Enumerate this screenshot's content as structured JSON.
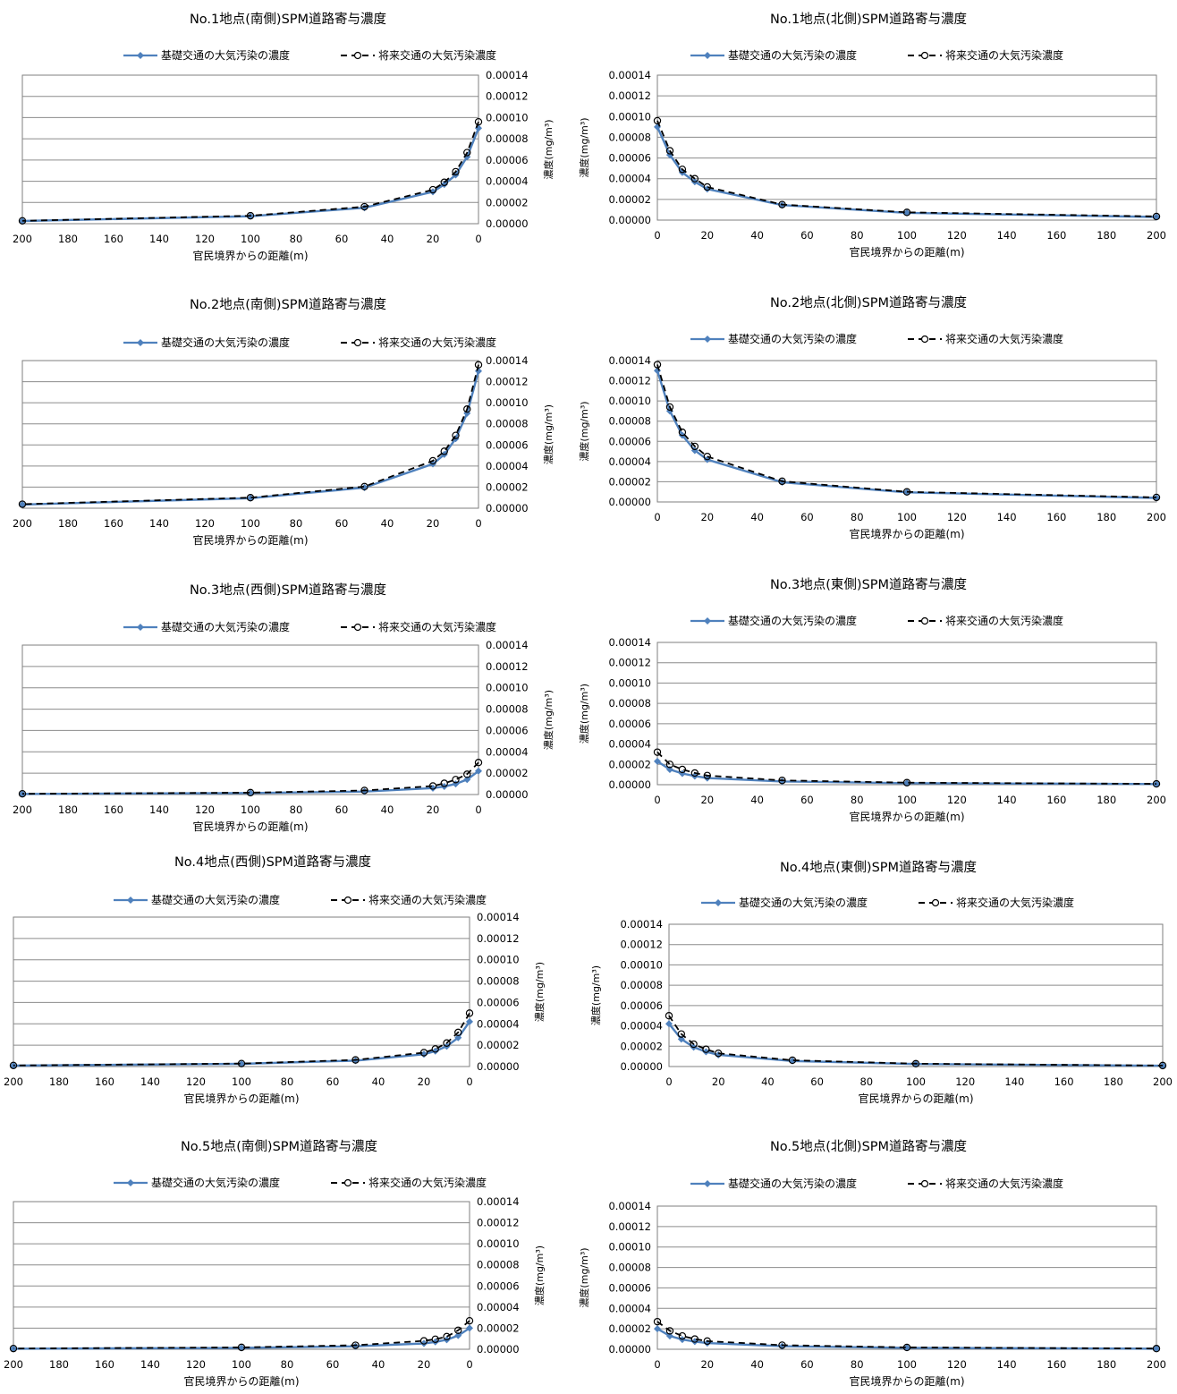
{
  "legend": {
    "base": "基礎交通の大気汚染の濃度",
    "future": "将来交通の大気汚染濃度"
  },
  "colors": {
    "base": "#4f81bd",
    "future": "#000000"
  },
  "xlabel": "官民境界からの距離(m)",
  "ylabel": "濃度(mg/m³)",
  "chart_data": [
    {
      "type": "line",
      "title": "No.1地点(南側)SPM道路寄与濃度",
      "orientation": "south",
      "xlim": [
        0,
        200
      ],
      "xticks": [
        200,
        180,
        160,
        140,
        120,
        100,
        80,
        60,
        40,
        20,
        0
      ],
      "x_reversed": true,
      "ylim": [
        0,
        0.00014
      ],
      "yticks": [
        "0.00000",
        "0.00002",
        "0.00004",
        "0.00006",
        "0.00008",
        "0.00010",
        "0.00012",
        "0.00014"
      ],
      "x": [
        0,
        5,
        10,
        15,
        20,
        50,
        100,
        200
      ],
      "series": [
        {
          "name": "基礎交通の大気汚染の濃度",
          "values": [
            9e-05,
            6.3e-05,
            4.6e-05,
            3.7e-05,
            3e-05,
            1.5e-05,
            7e-06,
            2.5e-06
          ]
        },
        {
          "name": "将来交通の大気汚染濃度",
          "values": [
            9.6e-05,
            6.7e-05,
            4.9e-05,
            3.9e-05,
            3.2e-05,
            1.6e-05,
            7.5e-06,
            2.7e-06
          ]
        }
      ]
    },
    {
      "type": "line",
      "title": "No.1地点(北側)SPM道路寄与濃度",
      "orientation": "north",
      "xlim": [
        0,
        200
      ],
      "xticks": [
        0,
        20,
        40,
        60,
        80,
        100,
        120,
        140,
        160,
        180,
        200
      ],
      "x_reversed": false,
      "ylim": [
        0,
        0.00014
      ],
      "yticks": [
        "0.00000",
        "0.00002",
        "0.00004",
        "0.00006",
        "0.00008",
        "0.00010",
        "0.00012",
        "0.00014"
      ],
      "x": [
        0,
        5,
        10,
        15,
        20,
        50,
        100,
        200
      ],
      "series": [
        {
          "name": "基礎交通の大気汚染の濃度",
          "values": [
            9e-05,
            6.3e-05,
            4.6e-05,
            3.7e-05,
            3e-05,
            1.45e-05,
            7e-06,
            3e-06
          ]
        },
        {
          "name": "将来交通の大気汚染濃度",
          "values": [
            9.6e-05,
            6.7e-05,
            4.9e-05,
            4e-05,
            3.2e-05,
            1.5e-05,
            7.5e-06,
            3.5e-06
          ]
        }
      ]
    },
    {
      "type": "line",
      "title": "No.2地点(南側)SPM道路寄与濃度",
      "orientation": "south",
      "xlim": [
        0,
        200
      ],
      "xticks": [
        200,
        180,
        160,
        140,
        120,
        100,
        80,
        60,
        40,
        20,
        0
      ],
      "x_reversed": true,
      "ylim": [
        0,
        0.00014
      ],
      "yticks": [
        "0.00000",
        "0.00002",
        "0.00004",
        "0.00006",
        "0.00008",
        "0.00010",
        "0.00012",
        "0.00014"
      ],
      "x": [
        0,
        5,
        10,
        15,
        20,
        50,
        100,
        200
      ],
      "series": [
        {
          "name": "基礎交通の大気汚染の濃度",
          "values": [
            0.00013,
            9e-05,
            6.6e-05,
            5.1e-05,
            4.2e-05,
            1.95e-05,
            9.5e-06,
            3.5e-06
          ]
        },
        {
          "name": "将来交通の大気汚染濃度",
          "values": [
            0.000136,
            9.4e-05,
            6.9e-05,
            5.4e-05,
            4.5e-05,
            2.05e-05,
            1e-05,
            3.8e-06
          ]
        }
      ]
    },
    {
      "type": "line",
      "title": "No.2地点(北側)SPM道路寄与濃度",
      "orientation": "north",
      "xlim": [
        0,
        200
      ],
      "xticks": [
        0,
        20,
        40,
        60,
        80,
        100,
        120,
        140,
        160,
        180,
        200
      ],
      "x_reversed": false,
      "ylim": [
        0,
        0.00014
      ],
      "yticks": [
        "0.00000",
        "0.00002",
        "0.00004",
        "0.00006",
        "0.00008",
        "0.00010",
        "0.00012",
        "0.00014"
      ],
      "x": [
        0,
        5,
        10,
        15,
        20,
        50,
        100,
        200
      ],
      "series": [
        {
          "name": "基礎交通の大気汚染の濃度",
          "values": [
            0.00013,
            9e-05,
            6.6e-05,
            5.1e-05,
            4.2e-05,
            1.95e-05,
            9.5e-06,
            4e-06
          ]
        },
        {
          "name": "将来交通の大気汚染濃度",
          "values": [
            0.000136,
            9.4e-05,
            6.9e-05,
            5.5e-05,
            4.5e-05,
            2.05e-05,
            1e-05,
            4.5e-06
          ]
        }
      ]
    },
    {
      "type": "line",
      "title": "No.3地点(西側)SPM道路寄与濃度",
      "orientation": "south",
      "xlim": [
        0,
        200
      ],
      "xticks": [
        200,
        180,
        160,
        140,
        120,
        100,
        80,
        60,
        40,
        20,
        0
      ],
      "x_reversed": true,
      "ylim": [
        0,
        0.00014
      ],
      "yticks": [
        "0.00000",
        "0.00002",
        "0.00004",
        "0.00006",
        "0.00008",
        "0.00010",
        "0.00012",
        "0.00014"
      ],
      "x": [
        0,
        5,
        10,
        15,
        20,
        50,
        100,
        200
      ],
      "series": [
        {
          "name": "基礎交通の大気汚染の濃度",
          "values": [
            2.2e-05,
            1.4e-05,
            1e-05,
            7.5e-06,
            6e-06,
            2.8e-06,
            1.4e-06,
            5e-07
          ]
        },
        {
          "name": "将来交通の大気汚染濃度",
          "values": [
            3e-05,
            1.9e-05,
            1.4e-05,
            1.05e-05,
            8e-06,
            3.8e-06,
            1.8e-06,
            7e-07
          ]
        }
      ]
    },
    {
      "type": "line",
      "title": "No.3地点(東側)SPM道路寄与濃度",
      "orientation": "north",
      "xlim": [
        0,
        200
      ],
      "xticks": [
        0,
        20,
        40,
        60,
        80,
        100,
        120,
        140,
        160,
        180,
        200
      ],
      "x_reversed": false,
      "ylim": [
        0,
        0.00014
      ],
      "yticks": [
        "0.00000",
        "0.00002",
        "0.00004",
        "0.00006",
        "0.00008",
        "0.00010",
        "0.00012",
        "0.00014"
      ],
      "x": [
        0,
        5,
        10,
        15,
        20,
        50,
        100,
        200
      ],
      "series": [
        {
          "name": "基礎交通の大気汚染の濃度",
          "values": [
            2.3e-05,
            1.5e-05,
            1.1e-05,
            8.5e-06,
            6.5e-06,
            3.2e-06,
            1.5e-06,
            6e-07
          ]
        },
        {
          "name": "将来交通の大気汚染濃度",
          "values": [
            3.2e-05,
            2e-05,
            1.5e-05,
            1.15e-05,
            9e-06,
            4.2e-06,
            2e-06,
            8e-07
          ]
        }
      ]
    },
    {
      "type": "line",
      "title": "No.4地点(西側)SPM道路寄与濃度",
      "orientation": "south",
      "xlim": [
        0,
        200
      ],
      "xticks": [
        200,
        180,
        160,
        140,
        120,
        100,
        80,
        60,
        40,
        20,
        0
      ],
      "x_reversed": true,
      "ylim": [
        0,
        0.00014
      ],
      "yticks": [
        "0.00000",
        "0.00002",
        "0.00004",
        "0.00006",
        "0.00008",
        "0.00010",
        "0.00012",
        "0.00014"
      ],
      "x": [
        0,
        5,
        10,
        15,
        20,
        50,
        100,
        200
      ],
      "series": [
        {
          "name": "基礎交通の大気汚染の濃度",
          "values": [
            4.2e-05,
            2.7e-05,
            1.9e-05,
            1.45e-05,
            1.15e-05,
            5.5e-06,
            2.5e-06,
            8e-07
          ]
        },
        {
          "name": "将来交通の大気汚染濃度",
          "values": [
            5e-05,
            3.2e-05,
            2.2e-05,
            1.65e-05,
            1.3e-05,
            6.2e-06,
            2.8e-06,
            1e-06
          ]
        }
      ]
    },
    {
      "type": "line",
      "title": "No.4地点(東側)SPM道路寄与濃度",
      "orientation": "north",
      "xlim": [
        0,
        200
      ],
      "xticks": [
        0,
        20,
        40,
        60,
        80,
        100,
        120,
        140,
        160,
        180,
        200
      ],
      "x_reversed": false,
      "ylim": [
        0,
        0.00014
      ],
      "yticks": [
        "0.00000",
        "0.00002",
        "0.00004",
        "0.00006",
        "0.00008",
        "0.00010",
        "0.00012",
        "0.00014"
      ],
      "x": [
        0,
        5,
        10,
        15,
        20,
        50,
        100,
        200
      ],
      "series": [
        {
          "name": "基礎交通の大気汚染の濃度",
          "values": [
            4.2e-05,
            2.7e-05,
            1.9e-05,
            1.45e-05,
            1.15e-05,
            5.5e-06,
            2.5e-06,
            8e-07
          ]
        },
        {
          "name": "将来交通の大気汚染濃度",
          "values": [
            5e-05,
            3.2e-05,
            2.2e-05,
            1.7e-05,
            1.3e-05,
            6.2e-06,
            2.8e-06,
            1e-06
          ]
        }
      ]
    },
    {
      "type": "line",
      "title": "No.5地点(南側)SPM道路寄与濃度",
      "orientation": "south",
      "xlim": [
        0,
        200
      ],
      "xticks": [
        200,
        180,
        160,
        140,
        120,
        100,
        80,
        60,
        40,
        20,
        0
      ],
      "x_reversed": true,
      "ylim": [
        0,
        0.00014
      ],
      "yticks": [
        "0.00000",
        "0.00002",
        "0.00004",
        "0.00006",
        "0.00008",
        "0.00010",
        "0.00012",
        "0.00014"
      ],
      "x": [
        0,
        5,
        10,
        15,
        20,
        50,
        100,
        200
      ],
      "series": [
        {
          "name": "基礎交通の大気汚染の濃度",
          "values": [
            2e-05,
            1.3e-05,
            9e-06,
            7e-06,
            5.5e-06,
            2.8e-06,
            1.3e-06,
            5e-07
          ]
        },
        {
          "name": "将来交通の大気汚染濃度",
          "values": [
            2.7e-05,
            1.8e-05,
            1.2e-05,
            9.5e-06,
            8e-06,
            3.8e-06,
            1.8e-06,
            7e-07
          ]
        }
      ]
    },
    {
      "type": "line",
      "title": "No.5地点(北側)SPM道路寄与濃度",
      "orientation": "north",
      "xlim": [
        0,
        200
      ],
      "xticks": [
        0,
        20,
        40,
        60,
        80,
        100,
        120,
        140,
        160,
        180,
        200
      ],
      "x_reversed": false,
      "ylim": [
        0,
        0.00014
      ],
      "yticks": [
        "0.00000",
        "0.00002",
        "0.00004",
        "0.00006",
        "0.00008",
        "0.00010",
        "0.00012",
        "0.00014"
      ],
      "x": [
        0,
        5,
        10,
        15,
        20,
        50,
        100,
        200
      ],
      "series": [
        {
          "name": "基礎交通の大気汚染の濃度",
          "values": [
            2e-05,
            1.3e-05,
            9.5e-06,
            7.5e-06,
            6e-06,
            3e-06,
            1.4e-06,
            5e-07
          ]
        },
        {
          "name": "将来交通の大気汚染濃度",
          "values": [
            2.7e-05,
            1.8e-05,
            1.3e-05,
            1e-05,
            8e-06,
            4e-06,
            1.8e-06,
            7e-07
          ]
        }
      ]
    }
  ]
}
